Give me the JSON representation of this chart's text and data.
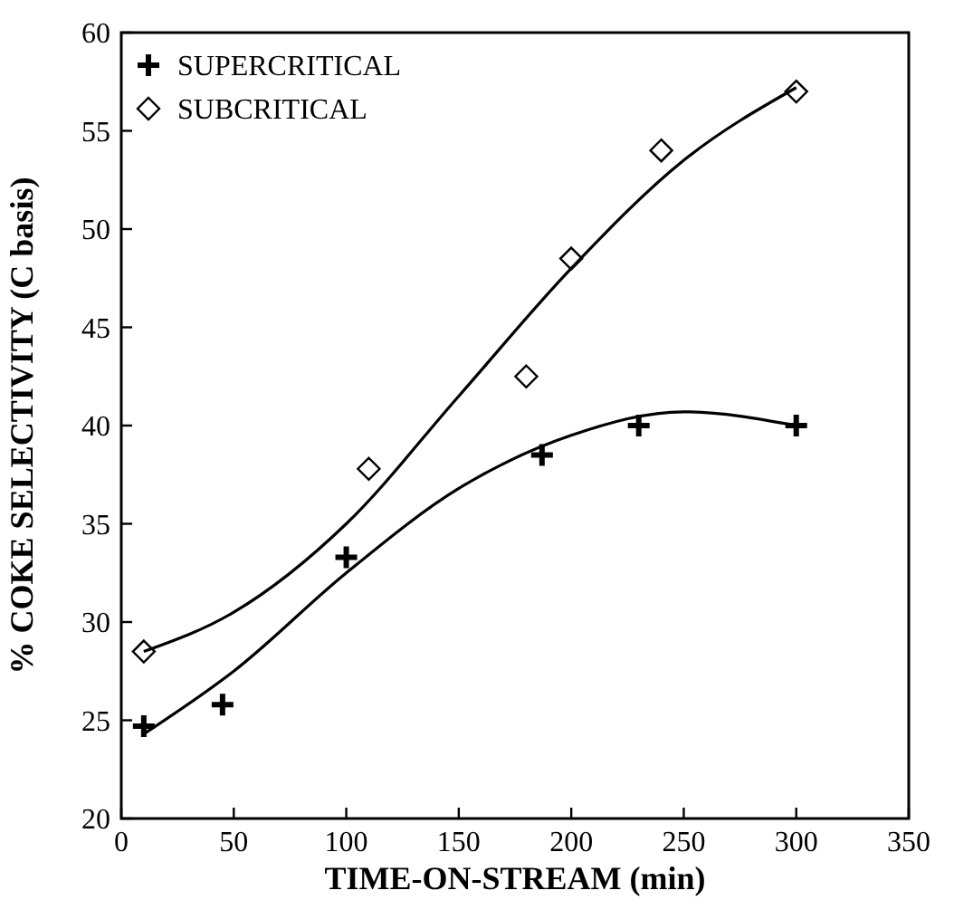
{
  "chart_data": {
    "type": "scatter",
    "xlabel": "TIME-ON-STREAM (min)",
    "ylabel": "% COKE SELECTIVITY (C basis)",
    "xlim": [
      0,
      350
    ],
    "xticks": [
      0,
      50,
      100,
      150,
      200,
      250,
      300,
      350
    ],
    "ylim": [
      20,
      60
    ],
    "yticks": [
      20,
      25,
      30,
      35,
      40,
      45,
      50,
      55,
      60
    ],
    "legend": "top left",
    "grid": false,
    "series": [
      {
        "name": "SUPERCRITICAL",
        "marker": "cross",
        "color": "#000000",
        "x": [
          10,
          45,
          100,
          187,
          230,
          300
        ],
        "values": [
          24.7,
          25.8,
          33.3,
          38.5,
          40,
          40
        ]
      },
      {
        "name": "SUBCRITICAL",
        "marker": "diamond",
        "color": "#000000",
        "x": [
          10,
          110,
          180,
          200,
          240,
          300
        ],
        "values": [
          28.5,
          37.8,
          42.5,
          48.5,
          54,
          57
        ]
      },
      {
        "type": "line",
        "marker": "none",
        "color": "#000000",
        "x": [
          10,
          50,
          100,
          150,
          200,
          250,
          300
        ],
        "values": [
          24.3,
          27.5,
          32.5,
          36.8,
          39.5,
          40.7,
          40
        ]
      },
      {
        "type": "line",
        "marker": "none",
        "color": "#000000",
        "x": [
          10,
          50,
          100,
          150,
          200,
          250,
          300
        ],
        "values": [
          28.5,
          30.5,
          35,
          41.5,
          48,
          53.5,
          57.2
        ]
      }
    ]
  }
}
